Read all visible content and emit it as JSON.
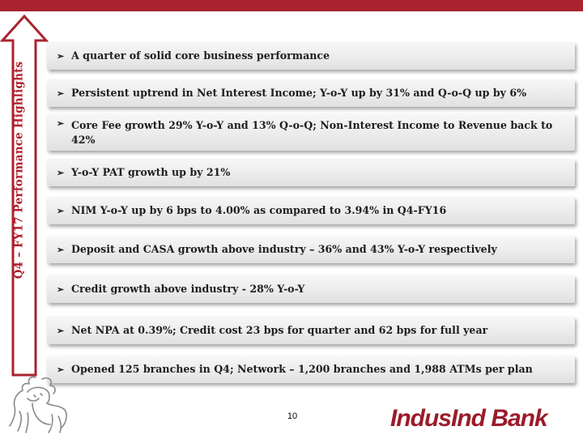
{
  "slide": {
    "vertical_title": "Q4 – FY17 Performance Highlights",
    "bullet_glyph": "➢",
    "highlights": [
      "A quarter of solid core business performance",
      "Persistent uptrend in Net Interest Income; Y-o-Y up by 31% and Q-o-Q up by  6%",
      "Core Fee growth 29% Y-o-Y and 13% Q-o-Q; Non-Interest Income to Revenue back to 42%",
      "Y-o-Y PAT growth up by 21%",
      "NIM Y-o-Y up by  6 bps to 4.00% as compared to 3.94% in  Q4-FY16",
      "Deposit and CASA growth above industry – 36% and 43% Y-o-Y  respectively",
      "Credit growth above industry - 28% Y-o-Y",
      "Net NPA at 0.39%; Credit cost 23 bps for quarter and 62 bps for full  year",
      "Opened 125 branches in Q4; Network – 1,200 branches and 1,988 ATMs per  plan"
    ],
    "page_number": "10",
    "brand_name": "IndusInd Bank"
  },
  "colors": {
    "accent": "#a8232f",
    "brand": "#9b1b2a",
    "box_fill": "#ececec"
  },
  "icons": {
    "arrow": "up-arrow-icon",
    "logo": "bull-logo-icon"
  }
}
